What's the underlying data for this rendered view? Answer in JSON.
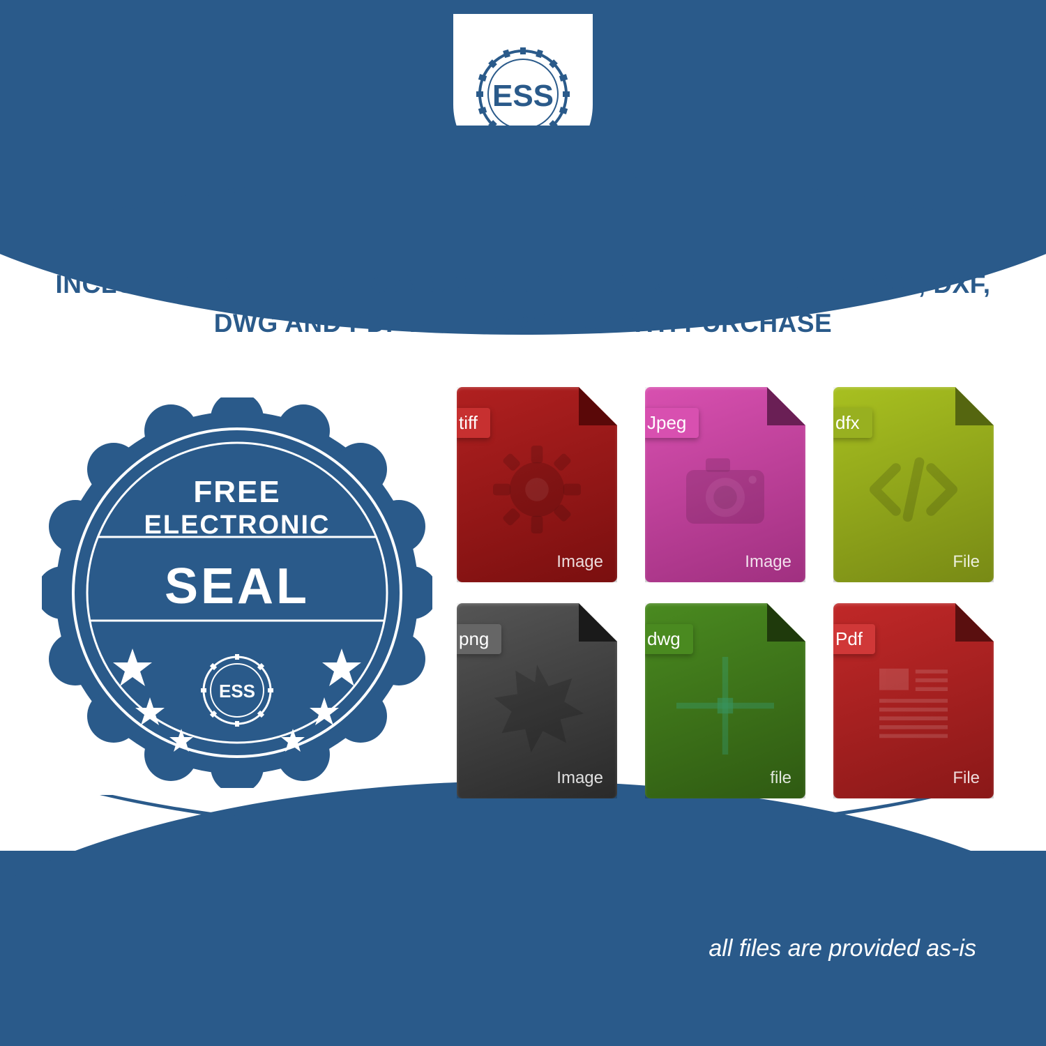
{
  "colors": {
    "brand_blue": "#2a5a8a",
    "white": "#ffffff"
  },
  "logo": {
    "text": "ESS"
  },
  "headline": "INCLUDES FREE ELECTRONIC SEALS DELIVERED IN TIF, JPG, PNG, DXF, DWG AND PDF FILE FORMATS WITH PURCHASE",
  "seal_badge": {
    "line1": "FREE",
    "line2": "ELECTRONIC",
    "line3": "SEAL",
    "inner_text": "ESS",
    "fill_color": "#2a5a8a",
    "text_color": "#ffffff"
  },
  "file_icons": [
    {
      "tab_label": "tiff",
      "footer_label": "Image",
      "bg_gradient_from": "#b02020",
      "bg_gradient_to": "#7a0f0f",
      "tab_color": "#c73030",
      "fold_color": "#5a0808",
      "glyph": "gear"
    },
    {
      "tab_label": "Jpeg",
      "footer_label": "Image",
      "bg_gradient_from": "#d850b0",
      "bg_gradient_to": "#a03080",
      "tab_color": "#d850b0",
      "fold_color": "#6a1f55",
      "glyph": "camera"
    },
    {
      "tab_label": "dfx",
      "footer_label": "File",
      "bg_gradient_from": "#a8c020",
      "bg_gradient_to": "#788a15",
      "tab_color": "#98b020",
      "fold_color": "#556610",
      "glyph": "code"
    },
    {
      "tab_label": "png",
      "footer_label": "Image",
      "bg_gradient_from": "#555555",
      "bg_gradient_to": "#2a2a2a",
      "tab_color": "#666666",
      "fold_color": "#1a1a1a",
      "glyph": "starburst"
    },
    {
      "tab_label": "dwg",
      "footer_label": "file",
      "bg_gradient_from": "#4a8a20",
      "bg_gradient_to": "#2f5a12",
      "tab_color": "#4a8a20",
      "fold_color": "#1f3a0c",
      "glyph": "crosshair"
    },
    {
      "tab_label": "Pdf",
      "footer_label": "File",
      "bg_gradient_from": "#c02828",
      "bg_gradient_to": "#8a1818",
      "tab_color": "#d03838",
      "fold_color": "#5a0f0f",
      "glyph": "document"
    }
  ],
  "disclaimer": "all files are provided as-is"
}
